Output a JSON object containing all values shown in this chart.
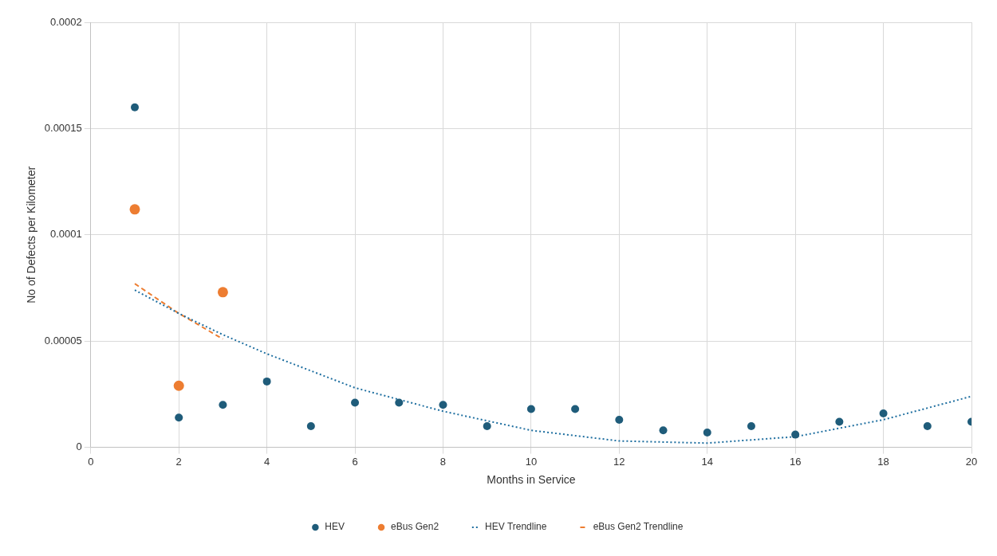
{
  "chart_data": {
    "type": "scatter",
    "xlabel": "Months in Service",
    "ylabel": "No of Defects per Kilometer",
    "xlim": [
      0,
      20
    ],
    "xticks": [
      0,
      2,
      4,
      6,
      8,
      10,
      12,
      14,
      16,
      18,
      20
    ],
    "ylim": [
      0,
      0.0002
    ],
    "yticks": [
      0,
      {
        "value": 5e-05,
        "label": "0.00005"
      },
      {
        "value": 0.0001,
        "label": "0.0001"
      },
      {
        "value": 0.00015,
        "label": "0.00015"
      },
      {
        "value": 0.0002,
        "label": "0.0002"
      }
    ],
    "grid": true,
    "legend": "bottom",
    "series": [
      {
        "name": "HEV",
        "type": "scatter",
        "marker": "circle",
        "color": "#1f5c7a",
        "x": [
          1,
          2,
          3,
          4,
          5,
          6,
          7,
          8,
          9,
          10,
          11,
          12,
          13,
          14,
          15,
          16,
          17,
          18,
          19,
          20
        ],
        "values": [
          0.00016,
          1.4e-05,
          2e-05,
          3.1e-05,
          1e-05,
          2.1e-05,
          2.1e-05,
          2e-05,
          1e-05,
          1.8e-05,
          1.8e-05,
          1.3e-05,
          8e-06,
          7e-06,
          1e-05,
          6e-06,
          1.2e-05,
          1.6e-05,
          1e-05,
          1.2e-05
        ]
      },
      {
        "name": "eBus Gen2",
        "type": "scatter",
        "marker": "circle",
        "color": "#ed7d31",
        "x": [
          1,
          2,
          3
        ],
        "values": [
          0.000112,
          2.9e-05,
          7.3e-05
        ]
      },
      {
        "name": "HEV Trendline",
        "type": "line",
        "marker": "none",
        "line_style": "dotted",
        "color": "#1f6fa0",
        "x": [
          1,
          2,
          3,
          4,
          6,
          8,
          10,
          12,
          14,
          16,
          18,
          20
        ],
        "values": [
          7.4e-05,
          6.3e-05,
          5.3e-05,
          4.4e-05,
          2.8e-05,
          1.7e-05,
          8e-06,
          3e-06,
          2e-06,
          5e-06,
          1.3e-05,
          2.4e-05
        ]
      },
      {
        "name": "eBus Gen2 Trendline",
        "type": "line",
        "marker": "none",
        "line_style": "dashed",
        "color": "#ed7d31",
        "x": [
          1,
          2,
          3
        ],
        "values": [
          7.7e-05,
          6.3e-05,
          5.1e-05
        ]
      }
    ]
  }
}
